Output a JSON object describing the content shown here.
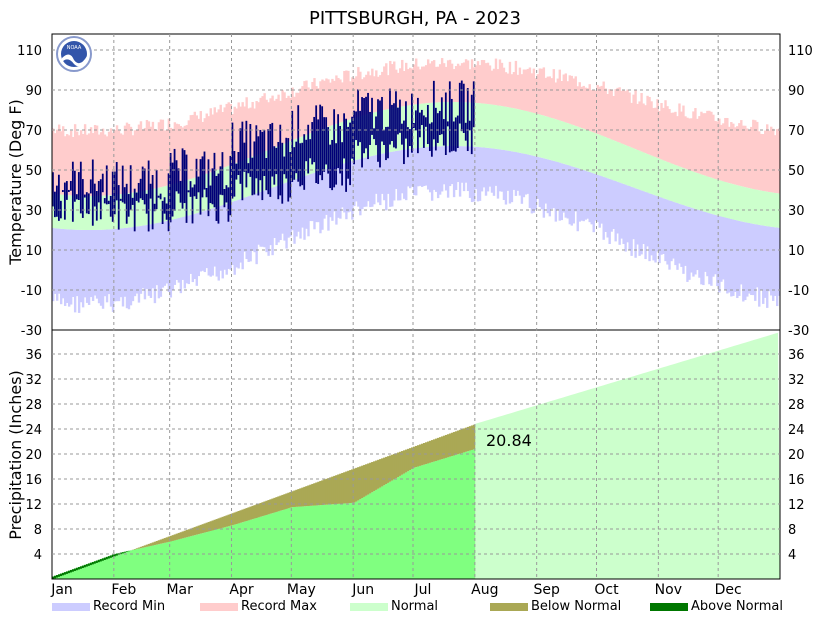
{
  "chart_data": [
    {
      "type": "area",
      "panel": "temperature",
      "title": "PITTSBURGH, PA - 2023",
      "ylabel": "Temperature (Deg F)",
      "ylim": [
        -30,
        120
      ],
      "y_ticks": [
        "110",
        "90",
        "70",
        "50",
        "30",
        "10",
        "-10",
        "-30"
      ],
      "months": [
        "Jan",
        "Feb",
        "Mar",
        "Apr",
        "May",
        "Jun",
        "Jul",
        "Aug",
        "Sep",
        "Oct",
        "Nov",
        "Dec"
      ],
      "grid": true,
      "normal_band": {
        "low_min": 20,
        "low_max": 62,
        "high_min": 37,
        "high_max": 84
      },
      "record_band": {
        "min_winter": -12,
        "min_summer": 44,
        "max_winter": 66,
        "max_summer": 100
      },
      "observed_through": "Jul 31",
      "observed_monthly": [
        {
          "month": "Jan",
          "high": 45,
          "low": 31
        },
        {
          "month": "Feb",
          "high": 44,
          "low": 28
        },
        {
          "month": "Mar",
          "high": 50,
          "low": 32
        },
        {
          "month": "Apr",
          "high": 64,
          "low": 42
        },
        {
          "month": "May",
          "high": 72,
          "low": 48
        },
        {
          "month": "Jun",
          "high": 80,
          "low": 60
        },
        {
          "month": "Jul",
          "high": 84,
          "low": 65
        }
      ],
      "colors": {
        "record_min": "#ccccff",
        "record_max": "#ffcccc",
        "normal": "#ccffcc",
        "observed": "#000077"
      }
    },
    {
      "type": "area",
      "panel": "precipitation",
      "ylabel": "Precipitation (Inches)",
      "ylim": [
        0,
        40
      ],
      "y_ticks": [
        "36",
        "32",
        "28",
        "24",
        "20",
        "16",
        "12",
        "8",
        "4"
      ],
      "normal_cumulative": [
        {
          "month": "Jan",
          "value": 0
        },
        {
          "month": "Aug",
          "value": 24.8
        },
        {
          "month": "Dec end",
          "value": 39.5
        }
      ],
      "observed_cumulative": [
        {
          "month": "Jan",
          "value": 0.4
        },
        {
          "month": "Feb",
          "value": 4.0
        },
        {
          "month": "Mar",
          "value": 6.0
        },
        {
          "month": "Apr",
          "value": 8.6
        },
        {
          "month": "May",
          "value": 11.5
        },
        {
          "month": "Jun",
          "value": 12.2
        },
        {
          "month": "Jul",
          "value": 17.8
        },
        {
          "month": "Aug",
          "value": 20.84
        }
      ],
      "ytd_label": "20.84",
      "colors": {
        "normal_future": "#ccffcc",
        "observed": "#80ff80",
        "below_normal": "#aaa855",
        "above_normal": "#007700"
      }
    }
  ],
  "legend": [
    {
      "label": "Record Min",
      "color": "#ccccff"
    },
    {
      "label": "Record Max",
      "color": "#ffcccc"
    },
    {
      "label": "Normal",
      "color": "#ccffcc"
    },
    {
      "label": "Below Normal",
      "color": "#aaa855"
    },
    {
      "label": "Above Normal",
      "color": "#007700"
    }
  ],
  "logo": {
    "text": "NOAA",
    "icon": "noaa-logo-icon"
  }
}
